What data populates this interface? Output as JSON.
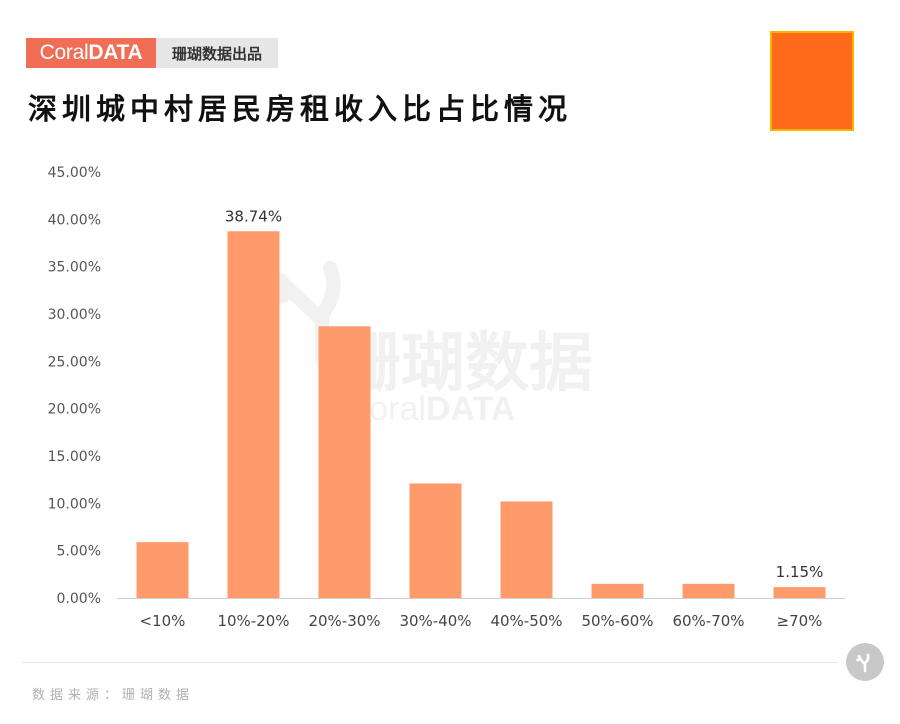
{
  "header": {
    "brand_logo_part1": "Coral",
    "brand_logo_part2": "DATA",
    "brand_tagline": "珊瑚数据出品",
    "title": "深圳城中村居民房租收入比占比情况"
  },
  "watermark": {
    "text_cn": "珊瑚数据",
    "text_en_part1": "Coral",
    "text_en_part2": "DATA"
  },
  "footer": {
    "source": "数据来源：珊瑚数据"
  },
  "colors": {
    "bar": "#ff9a6a",
    "brand": "#ef6e55",
    "accent_square": "#ff6a1a"
  },
  "chart_data": {
    "type": "bar",
    "categories": [
      "<10%",
      "10%-20%",
      "20%-30%",
      "30%-40%",
      "40%-50%",
      "50%-60%",
      "60%-70%",
      "≥70%"
    ],
    "values": [
      5.9,
      38.74,
      28.7,
      12.1,
      10.2,
      1.5,
      1.5,
      1.15
    ],
    "data_labels": [
      "",
      "38.74%",
      "",
      "",
      "",
      "",
      "",
      "1.15%"
    ],
    "y_ticks": [
      "0.00%",
      "5.00%",
      "10.00%",
      "15.00%",
      "20.00%",
      "25.00%",
      "30.00%",
      "35.00%",
      "40.00%",
      "45.00%"
    ],
    "ylim": [
      0,
      45
    ],
    "grid": false,
    "title": "",
    "xlabel": "",
    "ylabel": ""
  }
}
